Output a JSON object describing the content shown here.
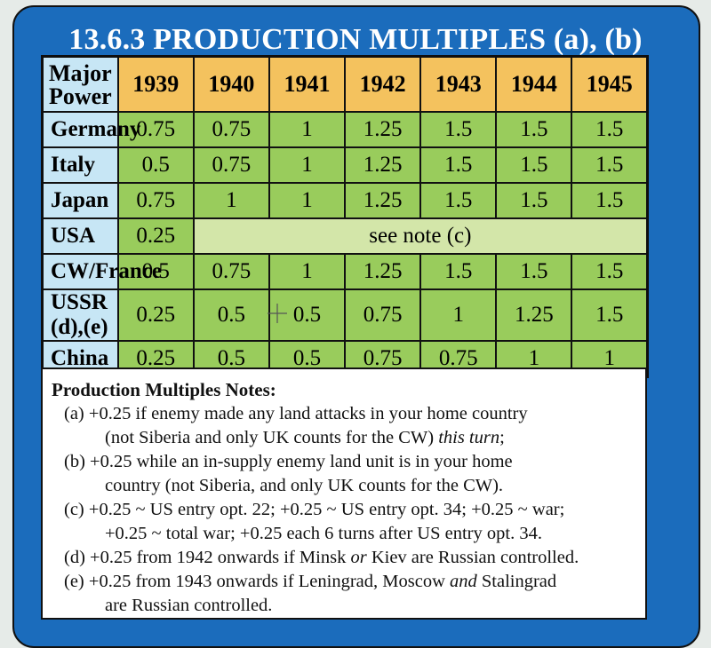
{
  "title": "13.6.3 PRODUCTION MULTIPLES (a), (b)",
  "table": {
    "corner_label_1": "Major",
    "corner_label_2": "Power",
    "years": [
      "1939",
      "1940",
      "1941",
      "1942",
      "1943",
      "1944",
      "1945"
    ],
    "rows": [
      {
        "power": "Germany",
        "values": [
          "0.75",
          "0.75",
          "1",
          "1.25",
          "1.5",
          "1.5",
          "1.5"
        ]
      },
      {
        "power": "Italy",
        "values": [
          "0.5",
          "0.75",
          "1",
          "1.25",
          "1.5",
          "1.5",
          "1.5"
        ]
      },
      {
        "power": "Japan",
        "values": [
          "0.75",
          "1",
          "1",
          "1.25",
          "1.5",
          "1.5",
          "1.5"
        ]
      },
      {
        "power": "USA",
        "values": [
          "0.25"
        ],
        "note": "see note (c)"
      },
      {
        "power": "CW/France",
        "values": [
          "0.5",
          "0.75",
          "1",
          "1.25",
          "1.5",
          "1.5",
          "1.5"
        ]
      },
      {
        "power": "USSR (d),(e)",
        "values": [
          "0.25",
          "0.5",
          "0.5",
          "0.75",
          "1",
          "1.25",
          "1.5"
        ]
      },
      {
        "power": "China",
        "values": [
          "0.25",
          "0.5",
          "0.5",
          "0.75",
          "0.75",
          "1",
          "1"
        ]
      }
    ]
  },
  "notes": {
    "heading": "Production Multiples Notes:",
    "a1": "(a) +0.25 if enemy made any land attacks in your home country",
    "a2_main": "(not Siberia and only UK counts for the CW) ",
    "a2_italic": "this turn",
    "a2_end": ";",
    "b1": "(b) +0.25 while an in-supply enemy land unit is in your home",
    "b2": "country (not Siberia, and only UK counts for the CW).",
    "c1": "(c) +0.25 ~ US entry opt. 22; +0.25 ~ US entry opt. 34; +0.25 ~ war;",
    "c2": "+0.25 ~ total war; +0.25 each 6 turns after US entry opt. 34.",
    "d_pre": "(d) +0.25 from 1942 onwards if Minsk ",
    "d_italic": "or",
    "d_post": " Kiev are Russian controlled.",
    "e1": "(e) +0.25 from 1943 onwards if Leningrad, Moscow ",
    "e1_italic": "and",
    "e1_post": " Stalingrad",
    "e2": "are Russian controlled."
  },
  "colors": {
    "frame_blue": "#1b6cbc",
    "header_gold": "#f4c25e",
    "power_blue": "#c7e6f5",
    "value_green": "#99cc5c",
    "note_green": "#d3e6a9"
  },
  "icons": [
    "crosshair-cursor-icon"
  ]
}
